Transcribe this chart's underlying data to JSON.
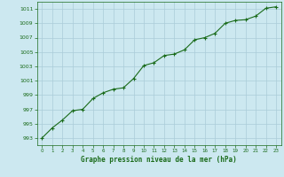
{
  "x": [
    0,
    1,
    2,
    3,
    4,
    5,
    6,
    7,
    8,
    9,
    10,
    11,
    12,
    13,
    14,
    15,
    16,
    17,
    18,
    19,
    20,
    21,
    22,
    23
  ],
  "y": [
    993.0,
    994.4,
    995.5,
    996.8,
    997.0,
    998.5,
    999.3,
    999.8,
    1000.0,
    1001.3,
    1003.1,
    1003.5,
    1004.5,
    1004.7,
    1005.3,
    1006.7,
    1007.0,
    1007.6,
    1009.0,
    1009.4,
    1009.5,
    1010.0,
    1011.1,
    1011.3
  ],
  "line_color": "#1a6b1a",
  "marker": "+",
  "bg_color": "#cce8f0",
  "grid_color": "#aaccd8",
  "xlabel": "Graphe pression niveau de la mer (hPa)",
  "xlabel_color": "#1a6b1a",
  "tick_color": "#1a6b1a",
  "ylim": [
    992,
    1012
  ],
  "xlim": [
    -0.5,
    23.5
  ],
  "yticks": [
    993,
    995,
    997,
    999,
    1001,
    1003,
    1005,
    1007,
    1009,
    1011
  ],
  "xticks": [
    0,
    1,
    2,
    3,
    4,
    5,
    6,
    7,
    8,
    9,
    10,
    11,
    12,
    13,
    14,
    15,
    16,
    17,
    18,
    19,
    20,
    21,
    22,
    23
  ]
}
